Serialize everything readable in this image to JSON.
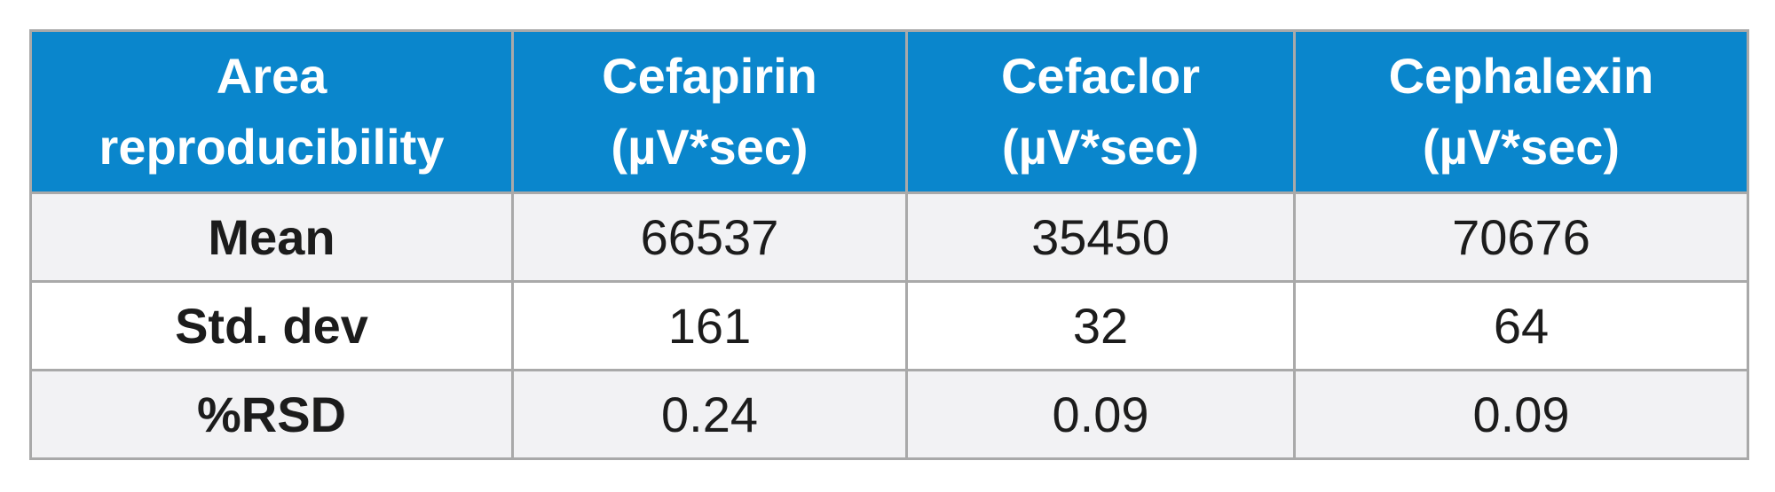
{
  "table": {
    "header": [
      {
        "line1": "Area",
        "line2": "reproducibility"
      },
      {
        "line1": "Cefapirin",
        "line2": "(µV*sec)"
      },
      {
        "line1": "Cefaclor",
        "line2": "(µV*sec)"
      },
      {
        "line1": "Cephalexin",
        "line2": "(µV*sec)"
      }
    ],
    "rows": [
      {
        "label": "Mean",
        "values": [
          "66537",
          "35450",
          "70676"
        ]
      },
      {
        "label": "Std. dev",
        "values": [
          "161",
          "32",
          "64"
        ]
      },
      {
        "label": "%RSD",
        "values": [
          "0.24",
          "0.09",
          "0.09"
        ]
      }
    ]
  },
  "colors": {
    "header_bg": "#0a86cc",
    "header_text": "#ffffff",
    "row_alt_bg": "#f2f2f4",
    "border": "#a9a9a9"
  }
}
